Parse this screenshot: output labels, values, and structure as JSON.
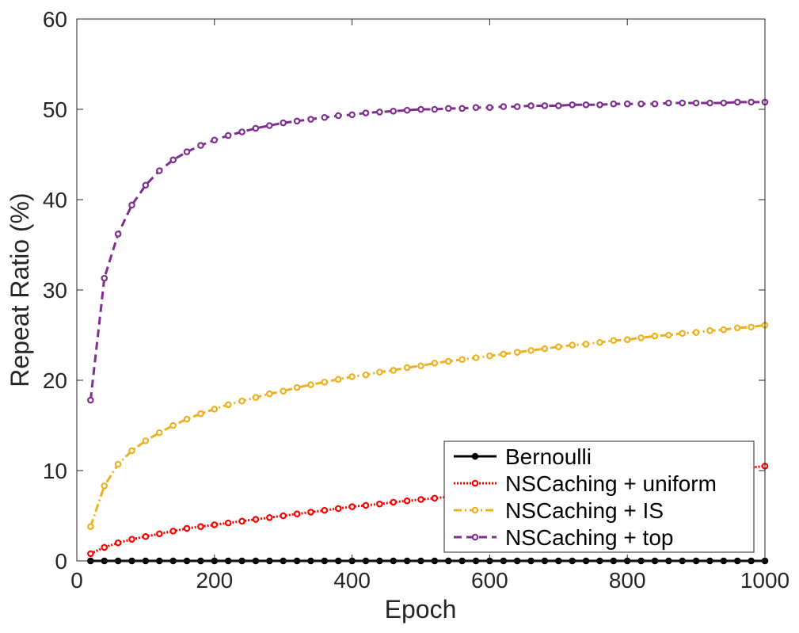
{
  "chart_data": {
    "type": "line",
    "title": "",
    "xlabel": "Epoch",
    "ylabel": "Repeat Ratio (%)",
    "xlim": [
      0,
      1000
    ],
    "ylim": [
      0,
      60
    ],
    "xticks": [
      0,
      200,
      400,
      600,
      800,
      1000
    ],
    "yticks": [
      0,
      10,
      20,
      30,
      40,
      50,
      60
    ],
    "grid": false,
    "legend_position": "bottom-right",
    "x": [
      20,
      40,
      60,
      80,
      100,
      120,
      140,
      160,
      180,
      200,
      220,
      240,
      260,
      280,
      300,
      320,
      340,
      360,
      380,
      400,
      420,
      440,
      460,
      480,
      500,
      520,
      540,
      560,
      580,
      600,
      620,
      640,
      660,
      680,
      700,
      720,
      740,
      760,
      780,
      800,
      820,
      840,
      860,
      880,
      900,
      920,
      940,
      960,
      980,
      1000
    ],
    "series": [
      {
        "name": "Bernoulli",
        "color": "#000000",
        "dash": "solid",
        "values": [
          0,
          0,
          0,
          0,
          0,
          0,
          0,
          0,
          0,
          0,
          0,
          0,
          0,
          0,
          0,
          0,
          0,
          0,
          0,
          0,
          0,
          0,
          0,
          0,
          0,
          0,
          0,
          0,
          0,
          0,
          0,
          0,
          0,
          0,
          0,
          0,
          0,
          0,
          0,
          0,
          0,
          0,
          0,
          0,
          0,
          0,
          0,
          0,
          0,
          0
        ]
      },
      {
        "name": "NSCaching + uniform",
        "color": "#ff0000",
        "dash": "dotted",
        "values": [
          0.8,
          1.5,
          2.0,
          2.4,
          2.7,
          3.0,
          3.3,
          3.6,
          3.8,
          4.0,
          4.2,
          4.4,
          4.6,
          4.8,
          5.0,
          5.2,
          5.4,
          5.6,
          5.8,
          6.0,
          6.15,
          6.3,
          6.5,
          6.65,
          6.8,
          6.95,
          7.1,
          7.25,
          7.4,
          7.55,
          7.7,
          7.85,
          8.0,
          8.15,
          8.3,
          8.45,
          8.6,
          8.75,
          8.9,
          9.05,
          9.2,
          9.35,
          9.5,
          9.6,
          9.75,
          9.9,
          10.05,
          10.2,
          10.35,
          10.5
        ]
      },
      {
        "name": "NSCaching + IS",
        "color": "#edb120",
        "dash": "dashdot",
        "values": [
          3.8,
          8.3,
          10.7,
          12.2,
          13.3,
          14.2,
          15.0,
          15.7,
          16.3,
          16.8,
          17.3,
          17.7,
          18.1,
          18.5,
          18.8,
          19.2,
          19.5,
          19.8,
          20.1,
          20.4,
          20.6,
          20.9,
          21.1,
          21.4,
          21.6,
          21.9,
          22.1,
          22.3,
          22.5,
          22.7,
          22.9,
          23.1,
          23.3,
          23.5,
          23.7,
          23.9,
          24.0,
          24.2,
          24.4,
          24.5,
          24.7,
          24.9,
          25.0,
          25.2,
          25.3,
          25.5,
          25.6,
          25.8,
          25.9,
          26.1
        ]
      },
      {
        "name": "NSCaching + top",
        "color": "#7e2f8e",
        "dash": "dashed",
        "values": [
          17.8,
          31.3,
          36.2,
          39.4,
          41.6,
          43.2,
          44.4,
          45.3,
          46.0,
          46.6,
          47.1,
          47.5,
          47.9,
          48.2,
          48.5,
          48.7,
          48.9,
          49.1,
          49.3,
          49.4,
          49.6,
          49.7,
          49.8,
          49.9,
          50.0,
          50.0,
          50.1,
          50.1,
          50.2,
          50.2,
          50.3,
          50.3,
          50.4,
          50.4,
          50.4,
          50.5,
          50.5,
          50.5,
          50.6,
          50.6,
          50.6,
          50.6,
          50.7,
          50.7,
          50.7,
          50.7,
          50.7,
          50.8,
          50.8,
          50.8
        ]
      }
    ]
  }
}
